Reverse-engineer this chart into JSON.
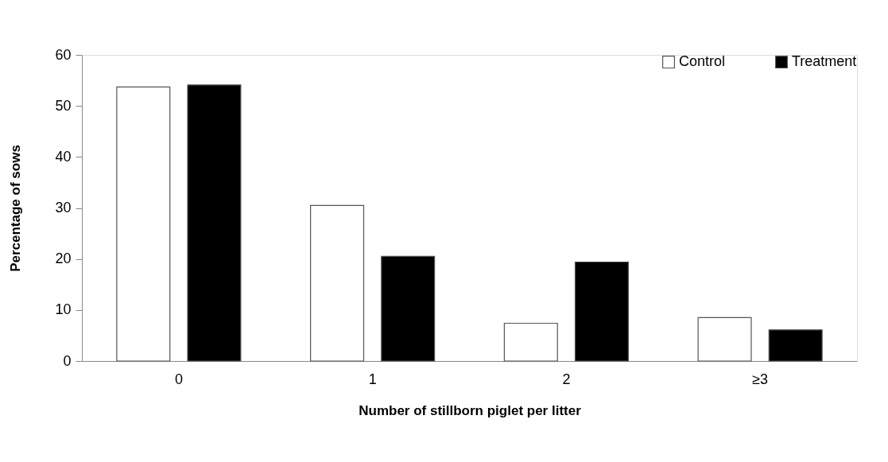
{
  "chart_data": {
    "type": "bar",
    "xlabel": "Number of stillborn piglet per litter",
    "ylabel": "Percentage of sows",
    "categories": [
      "0",
      "1",
      "2",
      "≥3"
    ],
    "series": [
      {
        "name": "Control",
        "color": "#ffffff",
        "values": [
          53.7,
          30.5,
          7.4,
          8.5
        ]
      },
      {
        "name": "Treatment",
        "color": "#000000",
        "values": [
          54.1,
          20.5,
          19.4,
          6.1
        ]
      }
    ],
    "ylim": [
      0,
      60
    ],
    "yticks": [
      0,
      10,
      20,
      30,
      40,
      50,
      60
    ],
    "grid": false,
    "legend": "top right"
  }
}
